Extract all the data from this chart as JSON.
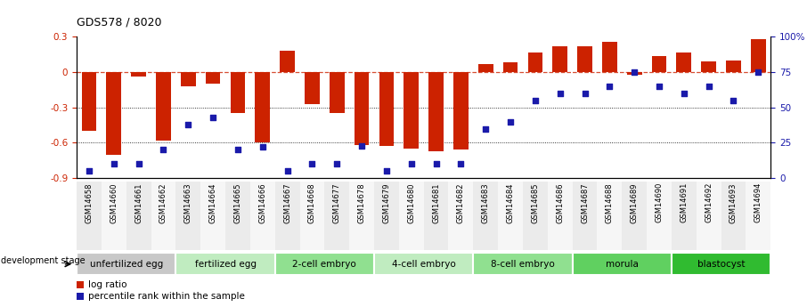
{
  "title": "GDS578 / 8020",
  "samples": [
    "GSM14658",
    "GSM14660",
    "GSM14661",
    "GSM14662",
    "GSM14663",
    "GSM14664",
    "GSM14665",
    "GSM14666",
    "GSM14667",
    "GSM14668",
    "GSM14677",
    "GSM14678",
    "GSM14679",
    "GSM14680",
    "GSM14681",
    "GSM14682",
    "GSM14683",
    "GSM14684",
    "GSM14685",
    "GSM14686",
    "GSM14687",
    "GSM14688",
    "GSM14689",
    "GSM14690",
    "GSM14691",
    "GSM14692",
    "GSM14693",
    "GSM14694"
  ],
  "log_ratio": [
    -0.5,
    -0.7,
    -0.04,
    -0.58,
    -0.12,
    -0.1,
    -0.35,
    -0.6,
    0.18,
    -0.27,
    -0.35,
    -0.62,
    -0.63,
    -0.65,
    -0.67,
    -0.66,
    0.07,
    0.08,
    0.17,
    0.22,
    0.22,
    0.26,
    -0.02,
    0.14,
    0.17,
    0.09,
    0.1,
    0.28
  ],
  "percentile_rank": [
    5,
    10,
    10,
    20,
    38,
    43,
    20,
    22,
    5,
    10,
    10,
    23,
    5,
    10,
    10,
    10,
    35,
    40,
    55,
    60,
    60,
    65,
    75,
    65,
    60,
    65,
    55,
    75
  ],
  "stages": [
    {
      "label": "unfertilized egg",
      "start": 0,
      "end": 4,
      "color": "#c8c8c8"
    },
    {
      "label": "fertilized egg",
      "start": 4,
      "end": 8,
      "color": "#c0ecc0"
    },
    {
      "label": "2-cell embryo",
      "start": 8,
      "end": 12,
      "color": "#90e090"
    },
    {
      "label": "4-cell embryo",
      "start": 12,
      "end": 16,
      "color": "#c0ecc0"
    },
    {
      "label": "8-cell embryo",
      "start": 16,
      "end": 20,
      "color": "#90e090"
    },
    {
      "label": "morula",
      "start": 20,
      "end": 24,
      "color": "#60d060"
    },
    {
      "label": "blastocyst",
      "start": 24,
      "end": 28,
      "color": "#30bb30"
    }
  ],
  "bar_color": "#cc2200",
  "dot_color": "#1a1aaa",
  "ylim_left": [
    -0.9,
    0.3
  ],
  "ylim_right": [
    0,
    100
  ],
  "yticks_left": [
    -0.9,
    -0.6,
    -0.3,
    0.0,
    0.3
  ],
  "yticks_right": [
    0,
    25,
    50,
    75,
    100
  ],
  "ytick_labels_left": [
    "-0.9",
    "-0.6",
    "-0.3",
    "0",
    "0.3"
  ],
  "ytick_labels_right": [
    "0",
    "25",
    "50",
    "75",
    "100%"
  ]
}
